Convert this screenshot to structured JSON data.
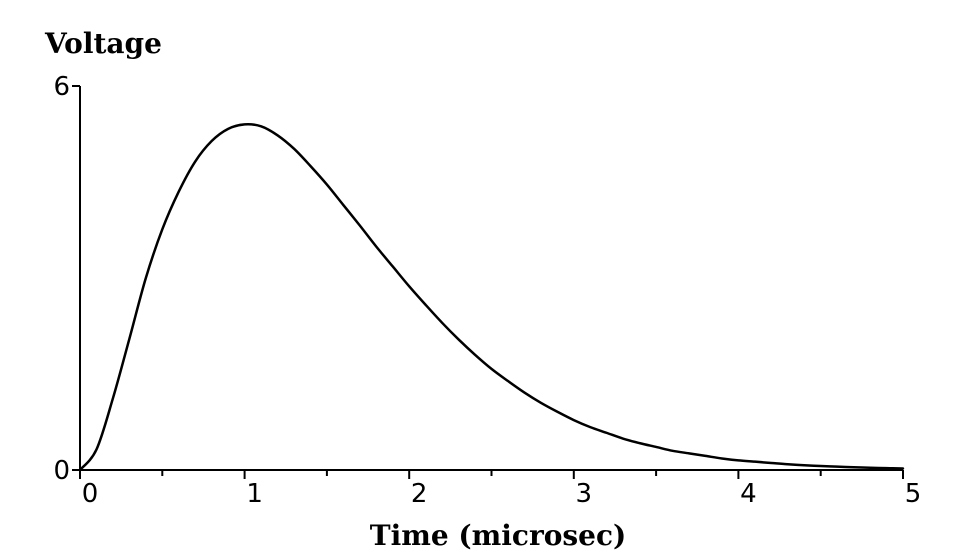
{
  "chart_data": {
    "type": "line",
    "title": "",
    "xlabel": "Time (microsec)",
    "ylabel": "Voltage",
    "xlim": [
      0,
      5
    ],
    "ylim": [
      0,
      6
    ],
    "x_ticks": [
      0,
      1,
      2,
      3,
      4,
      5
    ],
    "x_minor_ticks": [
      0.5,
      1.5,
      2.5,
      3.5,
      4.5
    ],
    "y_ticks": [
      0,
      6
    ],
    "grid": false,
    "color": "#000000",
    "series": [
      {
        "name": "Voltage",
        "x": [
          0,
          0.1,
          0.2,
          0.3,
          0.4,
          0.5,
          0.6,
          0.7,
          0.8,
          0.9,
          1.0,
          1.1,
          1.2,
          1.3,
          1.4,
          1.5,
          1.6,
          1.7,
          1.8,
          1.9,
          2.0,
          2.1,
          2.2,
          2.3,
          2.4,
          2.5,
          2.6,
          2.7,
          2.8,
          2.9,
          3.0,
          3.1,
          3.2,
          3.3,
          3.4,
          3.5,
          3.6,
          3.7,
          3.8,
          3.9,
          4.0,
          4.1,
          4.2,
          4.3,
          4.4,
          4.5,
          4.6,
          4.7,
          4.8,
          4.9,
          5.0
        ],
        "values": [
          0,
          0.32,
          1.12,
          2.05,
          3.0,
          3.76,
          4.35,
          4.82,
          5.14,
          5.33,
          5.4,
          5.37,
          5.23,
          5.02,
          4.75,
          4.46,
          4.14,
          3.82,
          3.49,
          3.18,
          2.87,
          2.58,
          2.3,
          2.04,
          1.8,
          1.58,
          1.39,
          1.21,
          1.05,
          0.91,
          0.78,
          0.67,
          0.58,
          0.49,
          0.42,
          0.36,
          0.3,
          0.26,
          0.22,
          0.18,
          0.15,
          0.13,
          0.11,
          0.09,
          0.075,
          0.062,
          0.052,
          0.043,
          0.035,
          0.029,
          0.024
        ]
      }
    ]
  }
}
